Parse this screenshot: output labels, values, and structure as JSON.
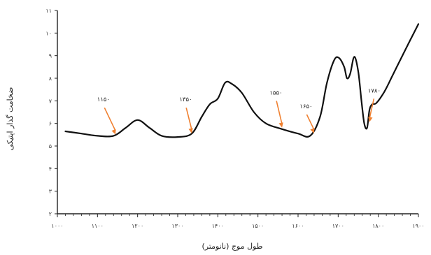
{
  "chart_data": {
    "type": "line",
    "xlabel": "طول موج (نانومتر)",
    "ylabel": "ضخامت گذار اپتیکی",
    "xlim": [
      1000,
      1900
    ],
    "ylim": [
      2,
      11
    ],
    "x_ticks": [
      {
        "value": 1000,
        "label": "۱۰۰۰"
      },
      {
        "value": 1100,
        "label": "۱۱۰۰"
      },
      {
        "value": 1200,
        "label": "۱۲۰۰"
      },
      {
        "value": 1300,
        "label": "۱۳۰۰"
      },
      {
        "value": 1400,
        "label": "۱۴۰۰"
      },
      {
        "value": 1500,
        "label": "۱۵۰۰"
      },
      {
        "value": 1600,
        "label": "۱۶۰۰"
      },
      {
        "value": 1700,
        "label": "۱۷۰۰"
      },
      {
        "value": 1800,
        "label": "۱۸۰۰"
      },
      {
        "value": 1900,
        "label": "۱۹۰۰"
      }
    ],
    "y_ticks": [
      {
        "value": 2,
        "label": "۲"
      },
      {
        "value": 3,
        "label": "۳"
      },
      {
        "value": 4,
        "label": "۴"
      },
      {
        "value": 5,
        "label": "۵"
      },
      {
        "value": 6,
        "label": "۶"
      },
      {
        "value": 7,
        "label": "۷"
      },
      {
        "value": 8,
        "label": "۸"
      },
      {
        "value": 9,
        "label": "۹"
      },
      {
        "value": 10,
        "label": "۱۰"
      },
      {
        "value": 11,
        "label": "۱۱"
      }
    ],
    "series": [
      {
        "color": "#111111",
        "x": [
          1020,
          1060,
          1100,
          1140,
          1170,
          1200,
          1230,
          1260,
          1300,
          1335,
          1360,
          1380,
          1400,
          1418,
          1435,
          1460,
          1490,
          1520,
          1560,
          1600,
          1630,
          1655,
          1672,
          1690,
          1702,
          1715,
          1722,
          1730,
          1740,
          1750,
          1758,
          1765,
          1772,
          1778,
          1785,
          1795,
          1815,
          1835,
          1860,
          1880,
          1900
        ],
        "y": [
          5.65,
          5.55,
          5.45,
          5.45,
          5.8,
          6.15,
          5.8,
          5.45,
          5.4,
          5.55,
          6.3,
          6.85,
          7.1,
          7.8,
          7.75,
          7.35,
          6.5,
          6.0,
          5.75,
          5.55,
          5.45,
          6.3,
          7.8,
          8.8,
          8.9,
          8.5,
          8.0,
          8.2,
          8.95,
          8.3,
          7.0,
          6.0,
          5.8,
          6.6,
          6.85,
          6.9,
          7.4,
          8.1,
          9.0,
          9.7,
          10.4
        ]
      }
    ],
    "annotations": [
      {
        "label": "۱۱۵۰",
        "x": 1145,
        "y": 5.45,
        "label_x": 1115,
        "label_y": 6.85,
        "color": "#f08030"
      },
      {
        "label": "۱۳۵۰",
        "x": 1335,
        "y": 5.5,
        "label_x": 1320,
        "label_y": 6.85,
        "color": "#f08030"
      },
      {
        "label": "۱۵۵۰",
        "x": 1560,
        "y": 5.75,
        "label_x": 1545,
        "label_y": 7.15,
        "color": "#f08030"
      },
      {
        "label": "۱۶۵۰",
        "x": 1640,
        "y": 5.5,
        "label_x": 1620,
        "label_y": 6.55,
        "color": "#f08030"
      },
      {
        "label": "۱۷۸۰",
        "x": 1778,
        "y": 6.0,
        "label_x": 1790,
        "label_y": 7.25,
        "color": "#f08030"
      }
    ],
    "grid": false
  }
}
